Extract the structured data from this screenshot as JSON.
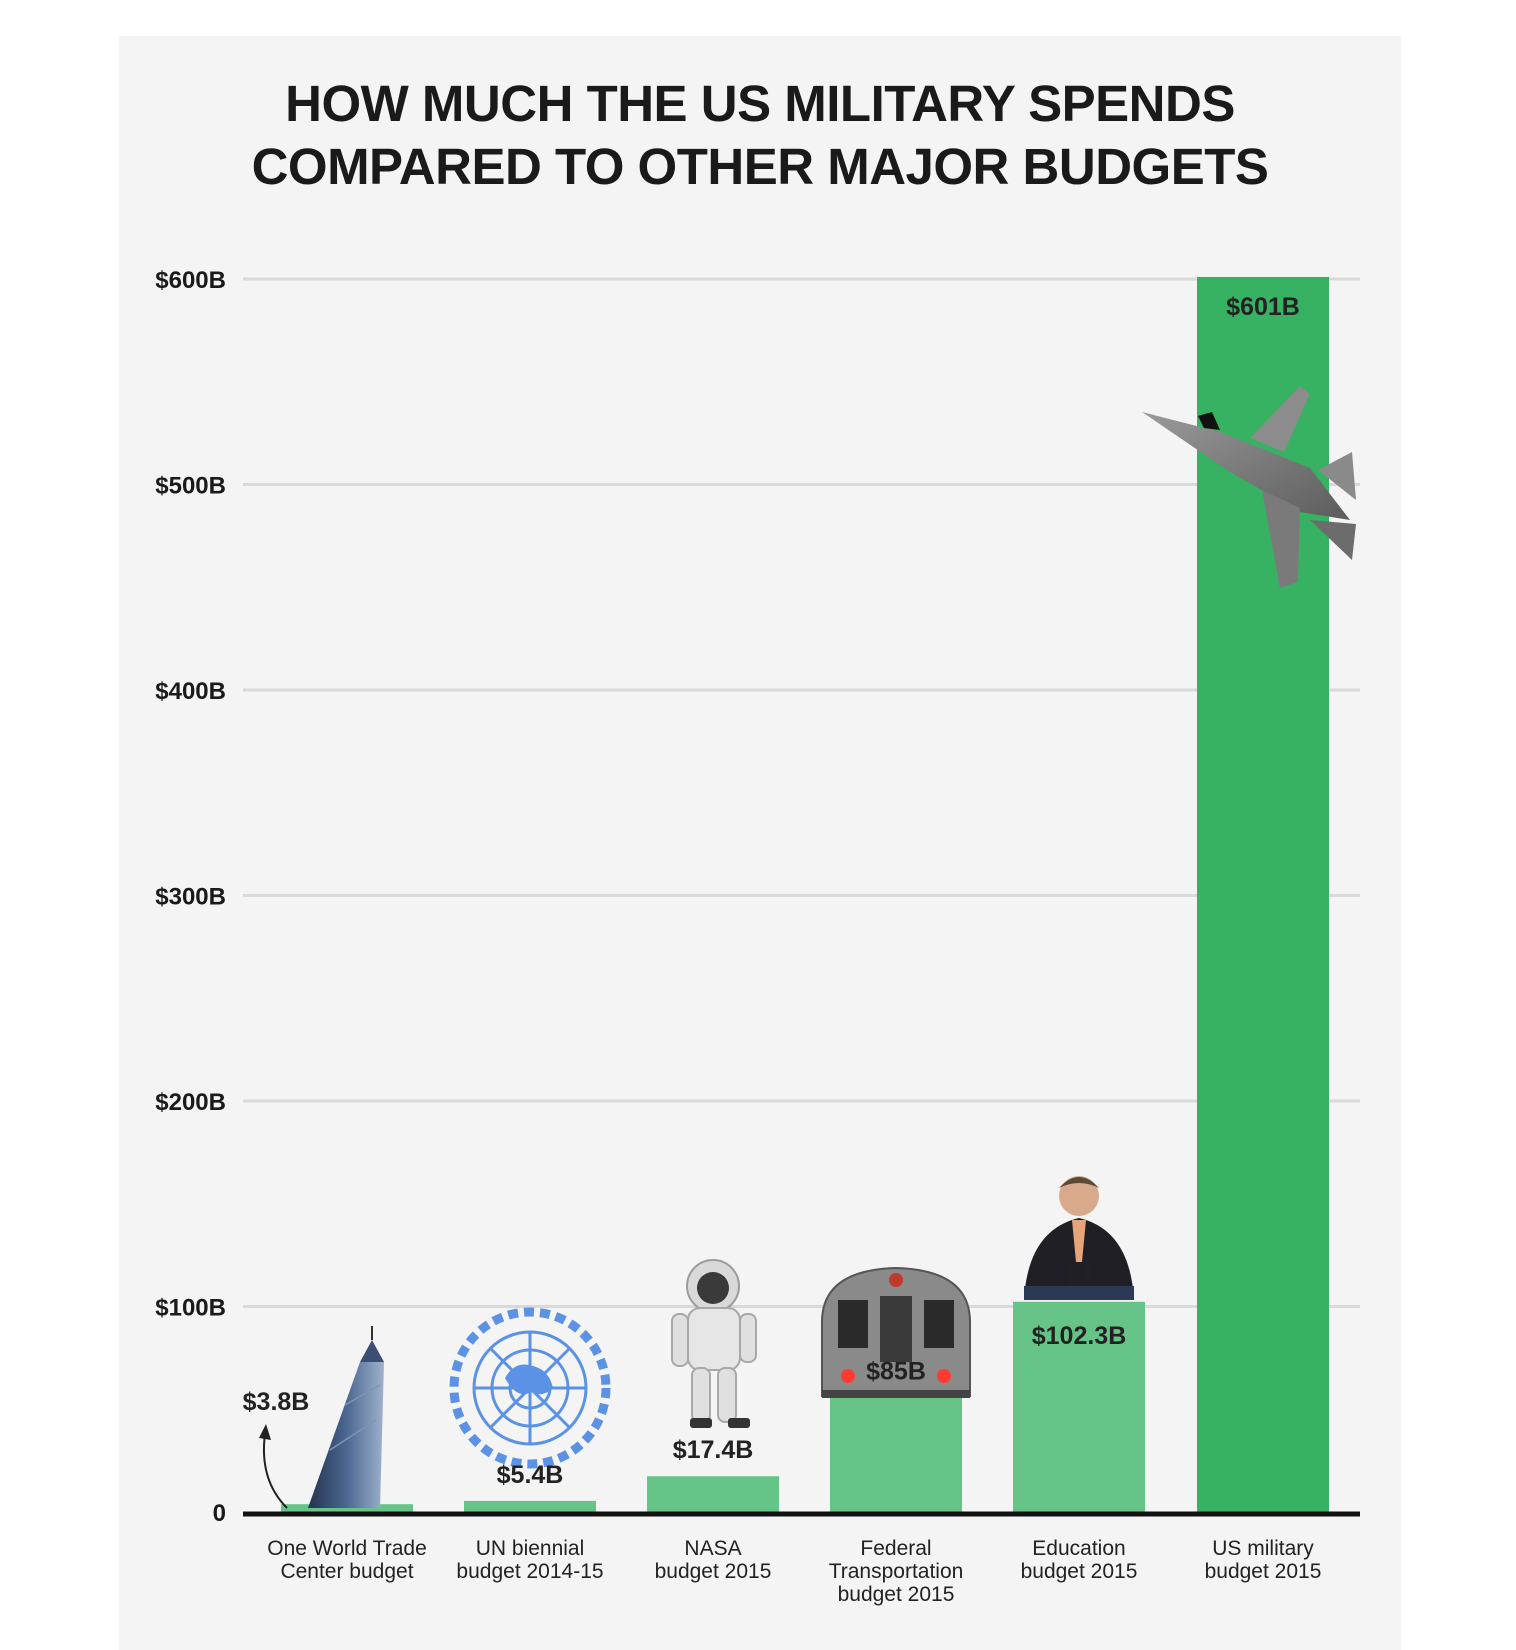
{
  "title": {
    "line1": "HOW MUCH THE US MILITARY SPENDS",
    "line2": "COMPARED TO OTHER MAJOR BUDGETS"
  },
  "colors": {
    "background": "#f4f4f4",
    "bar_light": "#66c489",
    "bar_dark": "#36b262",
    "grid": "#d9d9d9",
    "baseline": "#111111",
    "text": "#1a1a1a"
  },
  "chart_data": {
    "type": "bar",
    "title": "HOW MUCH THE US MILITARY SPENDS COMPARED TO OTHER MAJOR BUDGETS",
    "xlabel": "",
    "ylabel": "",
    "ylim": [
      0,
      600
    ],
    "grid": true,
    "yticks": [
      0,
      100,
      200,
      300,
      400,
      500,
      600
    ],
    "ytick_labels": [
      "0",
      "$100B",
      "$200B",
      "$300B",
      "$400B",
      "$500B",
      "$600B"
    ],
    "categories": [
      [
        "One World Trade",
        "Center budget"
      ],
      [
        "UN biennial",
        "budget 2014-15"
      ],
      [
        "NASA",
        "budget 2015"
      ],
      [
        "Federal",
        "Transportation",
        "budget 2015"
      ],
      [
        "Education",
        "budget 2015"
      ],
      [
        "US military",
        "budget 2015"
      ]
    ],
    "values": [
      3.8,
      5.4,
      17.4,
      85,
      102.3,
      601
    ],
    "data_labels": [
      "$3.8B",
      "$5.4B",
      "$17.4B",
      "$85B",
      "$102.3B",
      "$601B"
    ],
    "highlight_index": 5,
    "illustrations": [
      "skyscraper-icon",
      "un-emblem-icon",
      "astronaut-icon",
      "subway-train-icon",
      "speaker-at-podium-icon",
      "fighter-jet-icon"
    ]
  }
}
